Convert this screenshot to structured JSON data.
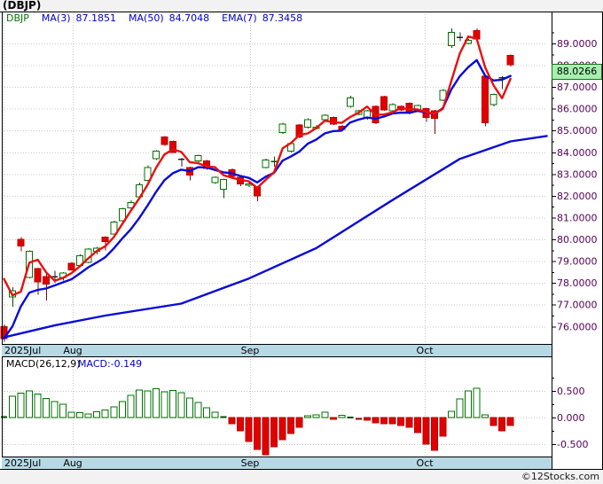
{
  "window": {
    "title": "(DBJP)",
    "footer": "©12Stocks.com"
  },
  "legend": {
    "symbol": "DBJP",
    "items": [
      {
        "label": "MA(3)",
        "value": "87.1851"
      },
      {
        "label": "MA(50)",
        "value": "84.7048"
      },
      {
        "label": "EMA(7)",
        "value": "87.3458"
      }
    ]
  },
  "macd_legend": {
    "label": "MACD(26,12,9)",
    "value": "MACD:-0.149"
  },
  "price_badge": "88.0266",
  "colors": {
    "up": "#007000",
    "up_wick": "#004d00",
    "down": "#e00000",
    "down_wick": "#7a0a0a",
    "doji": "#222222",
    "ma3": "#e81010",
    "ema7": "#0a0ad8",
    "ma50": "#0a0ad8",
    "grid": "#c9c9c9",
    "axis_text": "#550055",
    "strip_bg": "#b7d9e6",
    "badge_bg": "#a6efae",
    "legend_blue": "#0000cc",
    "legend_green": "#007700"
  },
  "chart_data": {
    "type": "candlestick",
    "title": "(DBJP)",
    "ylabel": "price",
    "y_axis": {
      "min_visible": 76,
      "max_visible": 89,
      "ticks": [
        {
          "v": 89,
          "label": "89.0000"
        },
        {
          "v": 88,
          "label": "88.0000"
        },
        {
          "v": 87,
          "label": "87.0000"
        },
        {
          "v": 86,
          "label": "86.0000"
        },
        {
          "v": 85,
          "label": "85.0000"
        },
        {
          "v": 84,
          "label": "84.0000"
        },
        {
          "v": 83,
          "label": "83.0000"
        },
        {
          "v": 82,
          "label": "82.0000"
        },
        {
          "v": 81,
          "label": "81.0000"
        },
        {
          "v": 80,
          "label": "80.0000"
        },
        {
          "v": 79,
          "label": "79.0000"
        },
        {
          "v": 78,
          "label": "78.0000"
        },
        {
          "v": 77,
          "label": "77.0000"
        },
        {
          "v": 76,
          "label": "76.0000"
        }
      ]
    },
    "months": [
      {
        "label": "2025Jul",
        "i": 0,
        "align": "left"
      },
      {
        "label": "Aug",
        "i": 8.2,
        "align": "center"
      },
      {
        "label": "Sep",
        "i": 29.2,
        "align": "center"
      },
      {
        "label": "Oct",
        "i": 49.9,
        "align": "center"
      }
    ],
    "last_close": 88.0266,
    "candles": [
      [
        76.0,
        76.1,
        75.3,
        75.45
      ],
      [
        77.35,
        77.8,
        76.9,
        77.65
      ],
      [
        80.0,
        80.1,
        79.45,
        79.7
      ],
      [
        78.25,
        79.5,
        78.2,
        79.45
      ],
      [
        78.65,
        78.7,
        77.45,
        78.05
      ],
      [
        78.3,
        78.45,
        77.2,
        77.95
      ],
      [
        78.3,
        78.55,
        78.0,
        78.3,
        "k"
      ],
      [
        78.25,
        78.5,
        78.1,
        78.45
      ],
      [
        78.9,
        78.95,
        78.55,
        78.6
      ],
      [
        78.8,
        79.3,
        78.75,
        79.25
      ],
      [
        78.95,
        79.6,
        78.9,
        79.55
      ],
      [
        79.45,
        79.65,
        79.3,
        79.6
      ],
      [
        80.1,
        80.15,
        79.5,
        79.9
      ],
      [
        80.25,
        80.85,
        80.2,
        80.8
      ],
      [
        80.85,
        81.45,
        80.8,
        81.4
      ],
      [
        81.45,
        81.8,
        81.3,
        81.7
      ],
      [
        81.95,
        82.6,
        81.9,
        82.5
      ],
      [
        82.7,
        83.4,
        82.65,
        83.3
      ],
      [
        83.7,
        84.1,
        83.65,
        84.05
      ],
      [
        84.7,
        84.75,
        84.3,
        84.35
      ],
      [
        84.5,
        84.55,
        84.0,
        84.0
      ],
      [
        83.7,
        83.75,
        83.35,
        83.7,
        "k"
      ],
      [
        83.3,
        83.35,
        82.7,
        82.95
      ],
      [
        83.6,
        83.9,
        83.55,
        83.85
      ],
      [
        83.6,
        83.65,
        83.2,
        83.25
      ],
      [
        82.6,
        82.9,
        82.55,
        82.85
      ],
      [
        82.3,
        82.8,
        81.9,
        82.75
      ],
      [
        83.2,
        83.25,
        82.85,
        82.9
      ],
      [
        82.85,
        82.9,
        82.45,
        82.55
      ],
      [
        82.5,
        82.6,
        82.4,
        82.55
      ],
      [
        82.4,
        82.45,
        81.75,
        82.0
      ],
      [
        83.3,
        83.7,
        83.25,
        83.65
      ],
      [
        83.6,
        83.8,
        83.35,
        83.6,
        "g"
      ],
      [
        84.9,
        85.35,
        84.85,
        85.3
      ],
      [
        84.05,
        84.45,
        84.0,
        84.4
      ],
      [
        85.25,
        85.3,
        84.65,
        84.7
      ],
      [
        85.15,
        85.55,
        85.1,
        85.5
      ],
      [
        85.1,
        85.25,
        85.05,
        85.15
      ],
      [
        85.5,
        85.75,
        85.45,
        85.7
      ],
      [
        85.6,
        85.65,
        85.25,
        85.3
      ],
      [
        85.2,
        85.25,
        85.0,
        85.05
      ],
      [
        86.1,
        86.6,
        86.05,
        86.5
      ],
      [
        85.75,
        85.95,
        85.7,
        85.9
      ],
      [
        85.55,
        85.95,
        85.5,
        85.9
      ],
      [
        86.1,
        86.15,
        85.3,
        85.35
      ],
      [
        86.55,
        86.6,
        85.9,
        85.95
      ],
      [
        85.9,
        86.25,
        85.85,
        86.2
      ],
      [
        86.1,
        86.15,
        85.9,
        85.95
      ],
      [
        86.25,
        86.3,
        85.75,
        85.8
      ],
      [
        85.9,
        86.2,
        85.85,
        86.15
      ],
      [
        86.0,
        86.05,
        85.4,
        85.6
      ],
      [
        85.9,
        85.95,
        84.85,
        85.55
      ],
      [
        86.4,
        86.9,
        86.35,
        86.85
      ],
      [
        88.9,
        89.7,
        88.8,
        89.5
      ],
      [
        89.3,
        89.5,
        89.1,
        89.3,
        "k"
      ],
      [
        89.0,
        89.2,
        88.95,
        89.15
      ],
      [
        89.6,
        89.7,
        89.15,
        89.2
      ],
      [
        87.5,
        87.55,
        85.2,
        85.35
      ],
      [
        86.2,
        86.7,
        86.1,
        86.65
      ],
      [
        87.45,
        87.5,
        86.9,
        87.45,
        "k"
      ],
      [
        88.45,
        88.5,
        87.95,
        88.03
      ]
    ],
    "overlays": {
      "ma3_period": 3,
      "ma3_seed_closes": [
        79.9,
        79.2
      ],
      "ema7_period": 7,
      "ma50_waypoints": [
        [
          0,
          75.5
        ],
        [
          6,
          76.05
        ],
        [
          12,
          76.5
        ],
        [
          21,
          77.05
        ],
        [
          29,
          78.2
        ],
        [
          37,
          79.6
        ],
        [
          46,
          81.8
        ],
        [
          54,
          83.7
        ],
        [
          60,
          84.5
        ],
        [
          64.3,
          84.75
        ]
      ]
    },
    "macd": {
      "params": "26,12,9",
      "last": -0.149,
      "ticks": [
        {
          "v": 0.5,
          "label": "0.500"
        },
        {
          "v": 0.0,
          "label": "0.000"
        },
        {
          "v": -0.5,
          "label": "-0.500"
        }
      ],
      "histogram": [
        0.02,
        0.4,
        0.46,
        0.5,
        0.44,
        0.36,
        0.3,
        0.25,
        0.1,
        0.09,
        0.07,
        0.11,
        0.14,
        0.2,
        0.3,
        0.42,
        0.52,
        0.5,
        0.54,
        0.48,
        0.51,
        0.47,
        0.37,
        0.28,
        0.18,
        0.1,
        0.02,
        -0.12,
        -0.25,
        -0.45,
        -0.6,
        -0.7,
        -0.55,
        -0.42,
        -0.3,
        -0.18,
        0.03,
        0.05,
        0.1,
        -0.03,
        0.04,
        0.01,
        -0.02,
        -0.05,
        -0.1,
        -0.12,
        -0.12,
        -0.15,
        -0.18,
        -0.28,
        -0.5,
        -0.62,
        -0.35,
        0.12,
        0.35,
        0.5,
        0.55,
        0.05,
        -0.15,
        -0.25,
        -0.149
      ]
    }
  }
}
